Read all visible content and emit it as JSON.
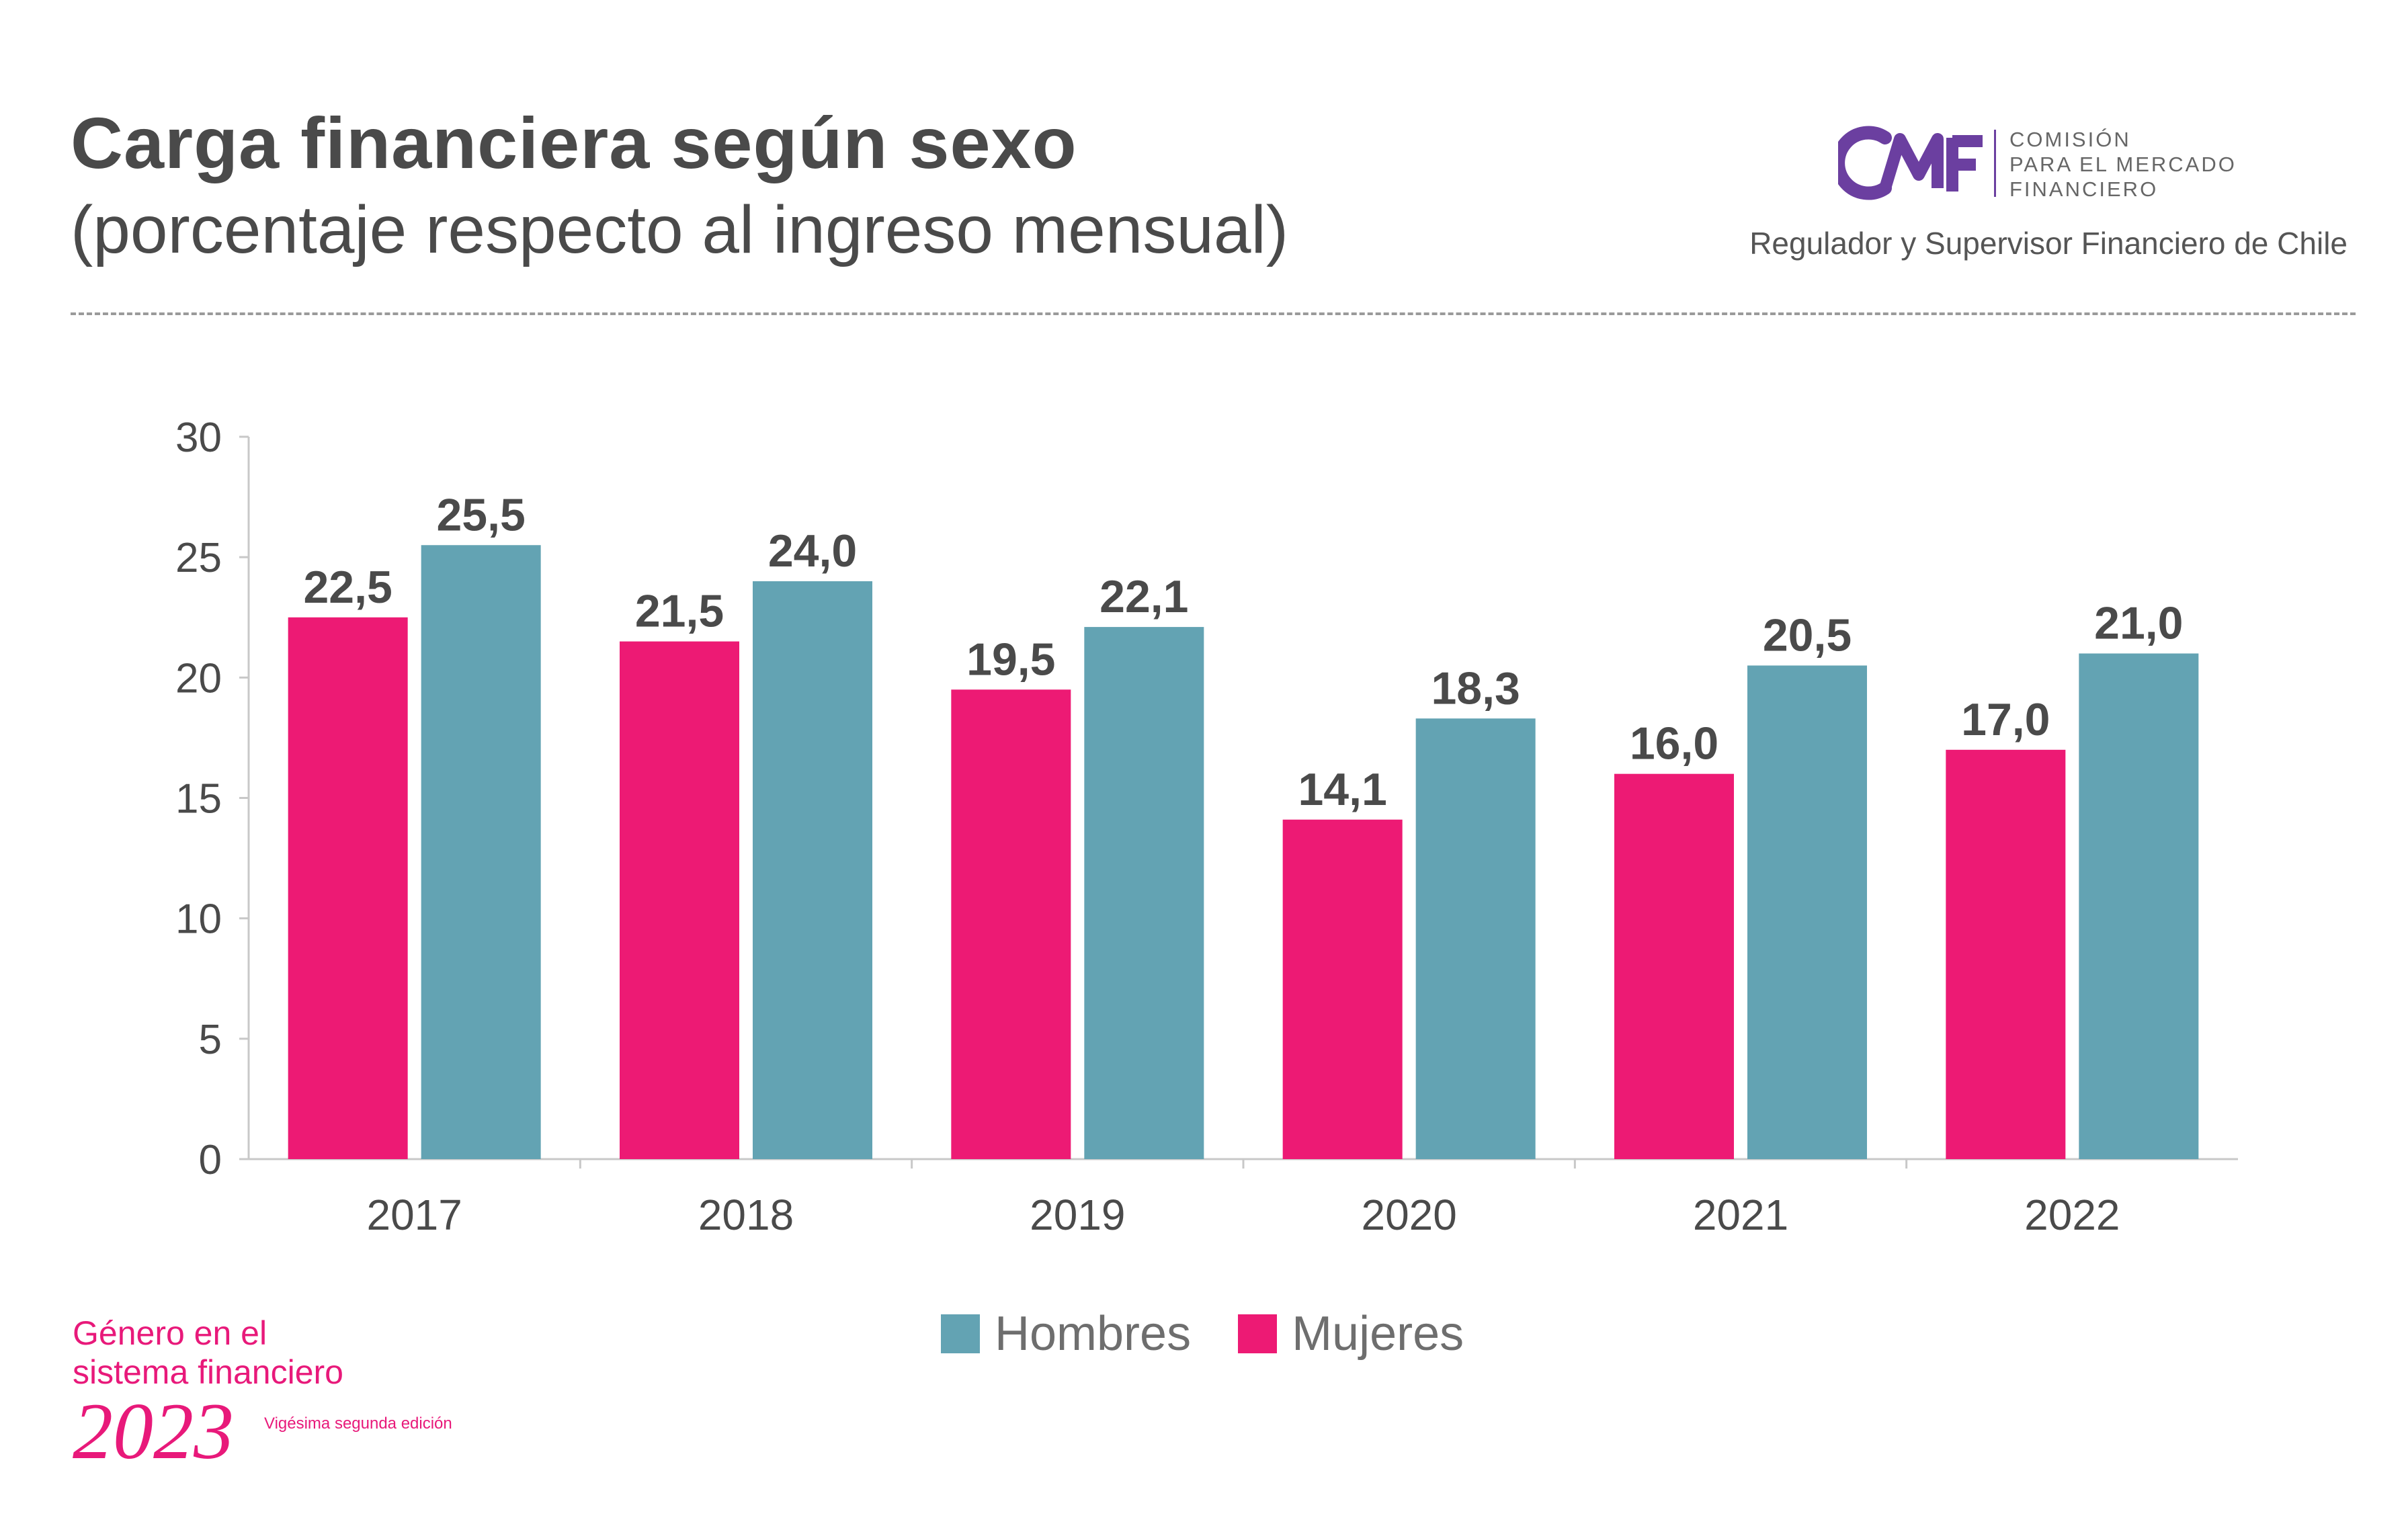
{
  "header": {
    "title": "Carga financiera según sexo",
    "subtitle": "(porcentaje respecto al ingreso mensual)"
  },
  "logo": {
    "line1": "COMISIÓN",
    "line2": "PARA EL MERCADO",
    "line3": "FINANCIERO",
    "tagline": "Regulador y Supervisor Financiero de Chile",
    "color": "#6b3fa0"
  },
  "chart_data": {
    "type": "bar",
    "categories": [
      "2017",
      "2018",
      "2019",
      "2020",
      "2021",
      "2022"
    ],
    "series": [
      {
        "name": "Mujeres",
        "color": "#ed1a74",
        "values": [
          22.5,
          21.5,
          19.5,
          14.1,
          16.0,
          17.0
        ],
        "labels": [
          "22,5",
          "21,5",
          "19,5",
          "14,1",
          "16,0",
          "17,0"
        ]
      },
      {
        "name": "Hombres",
        "color": "#63a3b3",
        "values": [
          25.5,
          24.0,
          22.1,
          18.3,
          20.5,
          21.0
        ],
        "labels": [
          "25,5",
          "24,0",
          "22,1",
          "18,3",
          "20,5",
          "21,0"
        ]
      }
    ],
    "yticks": [
      "0",
      "5",
      "10",
      "15",
      "20",
      "25",
      "30"
    ],
    "ylim": [
      0,
      30
    ],
    "legend": [
      "Hombres",
      "Mujeres"
    ],
    "legend_placement": "bottom-center",
    "grid": false
  },
  "footer": {
    "line1": "Género en el",
    "line2": "sistema financiero",
    "year": "2023",
    "edition": "Vigésima segunda edición"
  }
}
